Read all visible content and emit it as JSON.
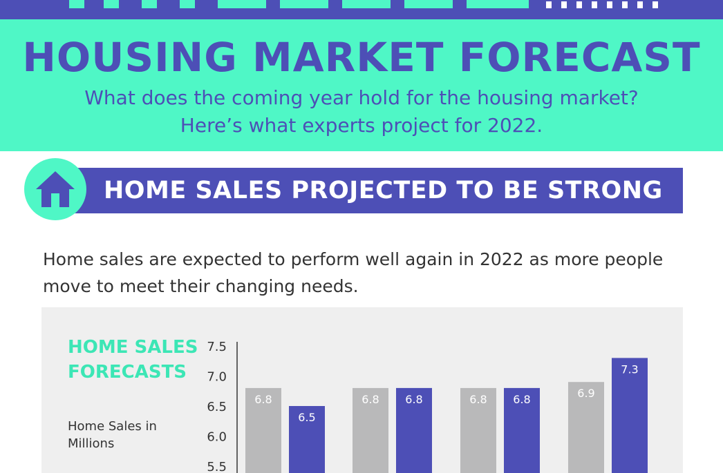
{
  "header": {
    "title": "HOUSING MARKET FORECAST",
    "subtitle_line1": "What does the coming year hold for the housing market?",
    "subtitle_line2": "Here’s what experts project for 2022."
  },
  "section": {
    "title": "HOME SALES PROJECTED TO BE STRONG",
    "icon": "house-icon"
  },
  "intro_text": "Home sales are expected to perform well again in 2022 as more people move to meet their changing needs.",
  "colors": {
    "purple": "#4d4fb6",
    "mint": "#4ff7c6",
    "gray_bar": "#b9b9ba",
    "panel": "#efefef"
  },
  "chart_data": {
    "type": "bar",
    "title": "HOME SALES FORECASTS",
    "ylabel": "Home Sales in Millions",
    "ylim": [
      5.5,
      7.5
    ],
    "yticks": [
      "7.5",
      "7.0",
      "6.5",
      "6.0",
      "5.5"
    ],
    "groups": [
      {
        "values": [
          6.8,
          6.5
        ],
        "labels": [
          "6.8",
          "6.5"
        ]
      },
      {
        "values": [
          6.8,
          6.8
        ],
        "labels": [
          "6.8",
          "6.8"
        ]
      },
      {
        "values": [
          6.8,
          6.8
        ],
        "labels": [
          "6.8",
          "6.8"
        ]
      },
      {
        "values": [
          6.9,
          7.3
        ],
        "labels": [
          "6.9",
          "7.3"
        ]
      }
    ]
  }
}
